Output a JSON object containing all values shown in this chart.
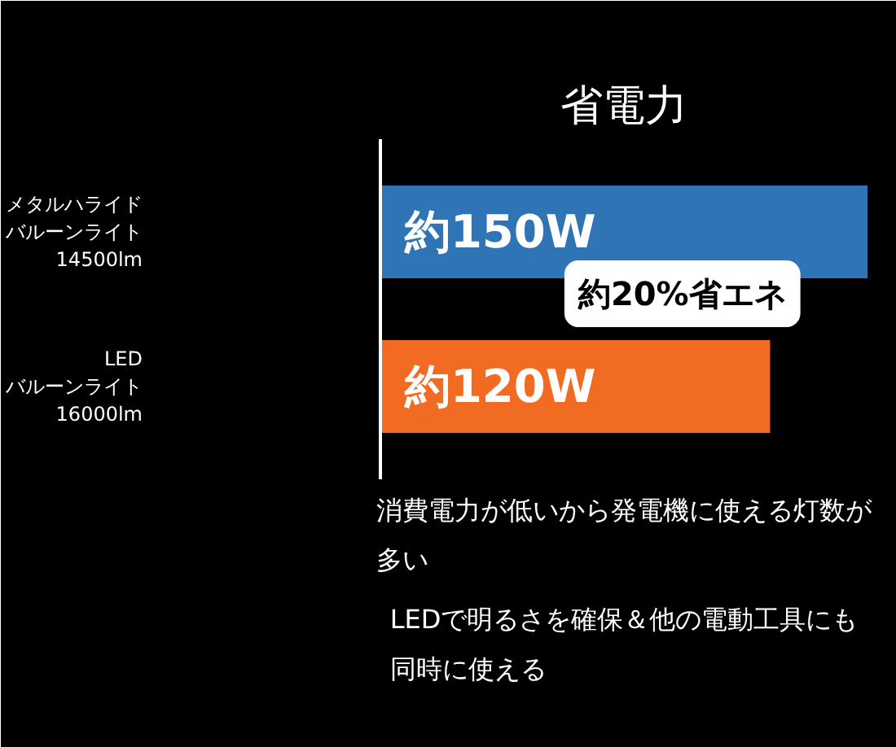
{
  "chart_data": {
    "type": "bar",
    "orientation": "horizontal",
    "tick_labels": "y",
    "title": "省電力",
    "categories": [
      "メタルハライドバルーンライト14500lm",
      "LEDバルーンライト16000lm"
    ],
    "values": [
      150,
      120
    ],
    "colors": [
      "#2f74b5",
      "#f26b22"
    ],
    "value_labels": [
      "約150W",
      "約120W"
    ],
    "annotations": [
      "約20%省エネ",
      "消費電力が低いから発電機に使える灯数が多い",
      "LEDで明るさを確保＆他の電動工具にも同時に使える"
    ],
    "grid": false
  }
}
